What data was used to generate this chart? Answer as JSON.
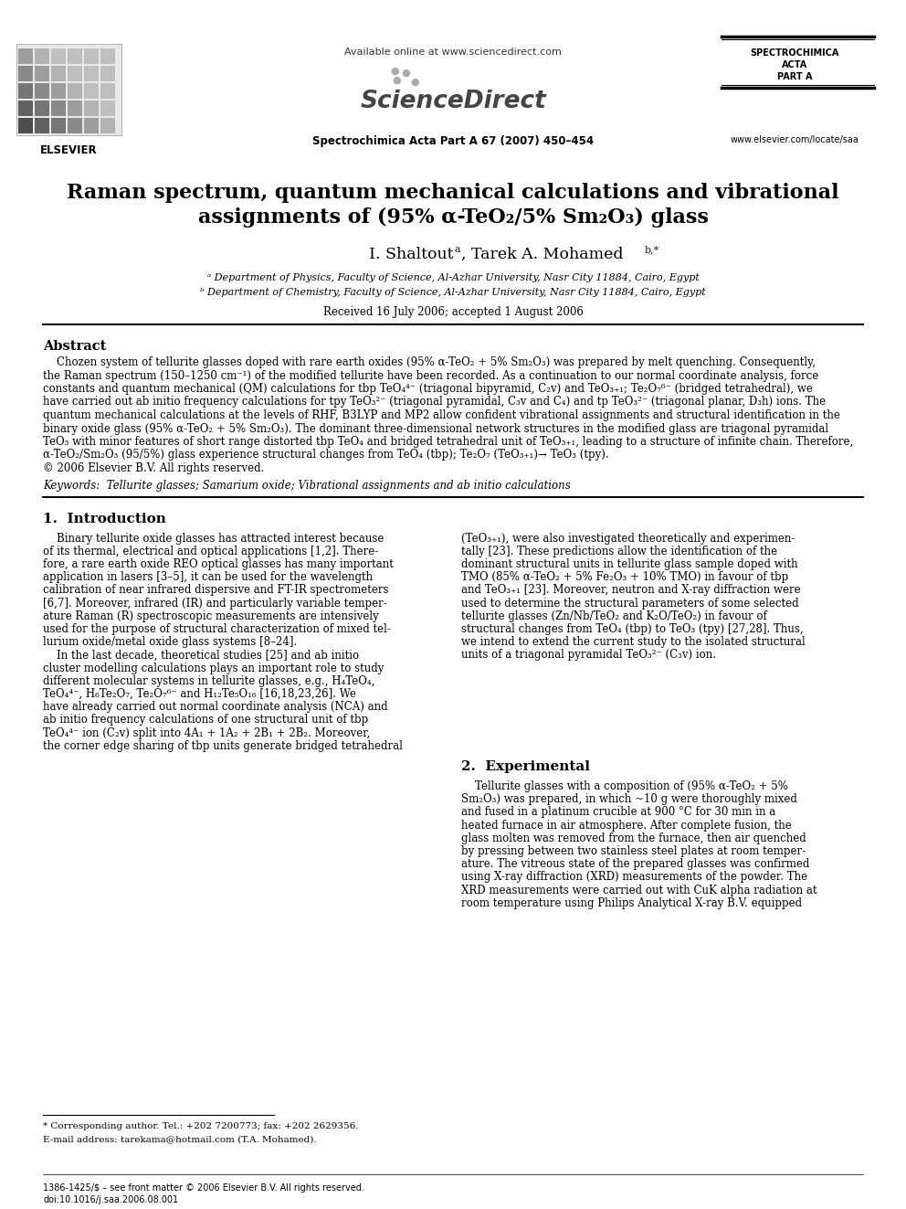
{
  "bg_color": "#ffffff",
  "fig_width": 9.92,
  "fig_height": 13.23,
  "header": {
    "available_online": "Available online at www.sciencedirect.com",
    "journal_info": "Spectrochimica Acta Part A 67 (2007) 450–454",
    "journal_name_lines": [
      "SPECTROCHIMICA",
      "ACTA",
      "PART A"
    ],
    "journal_url": "www.elsevier.com/locate/saa"
  },
  "title_line1": "Raman spectrum, quantum mechanical calculations and vibrational",
  "title_line2": "assignments of (95% α-TeO₂/5% Sm₂O₃) glass",
  "affil_a": "ᵃ Department of Physics, Faculty of Science, Al-Azhar University, Nasr City 11884, Cairo, Egypt",
  "affil_b": "ᵇ Department of Chemistry, Faculty of Science, Al-Azhar University, Nasr City 11884, Cairo, Egypt",
  "received": "Received 16 July 2006; accepted 1 August 2006",
  "abstract_title": "Abstract",
  "footnote_corresponding": "* Corresponding author. Tel.: +202 7200773; fax: +202 2629356.",
  "footnote_email": "E-mail address: tarekama@hotmail.com (T.A. Mohamed).",
  "footer_left": "1386-1425/$ – see front matter © 2006 Elsevier B.V. All rights reserved.",
  "footer_doi": "doi:10.1016/j.saa.2006.08.001"
}
